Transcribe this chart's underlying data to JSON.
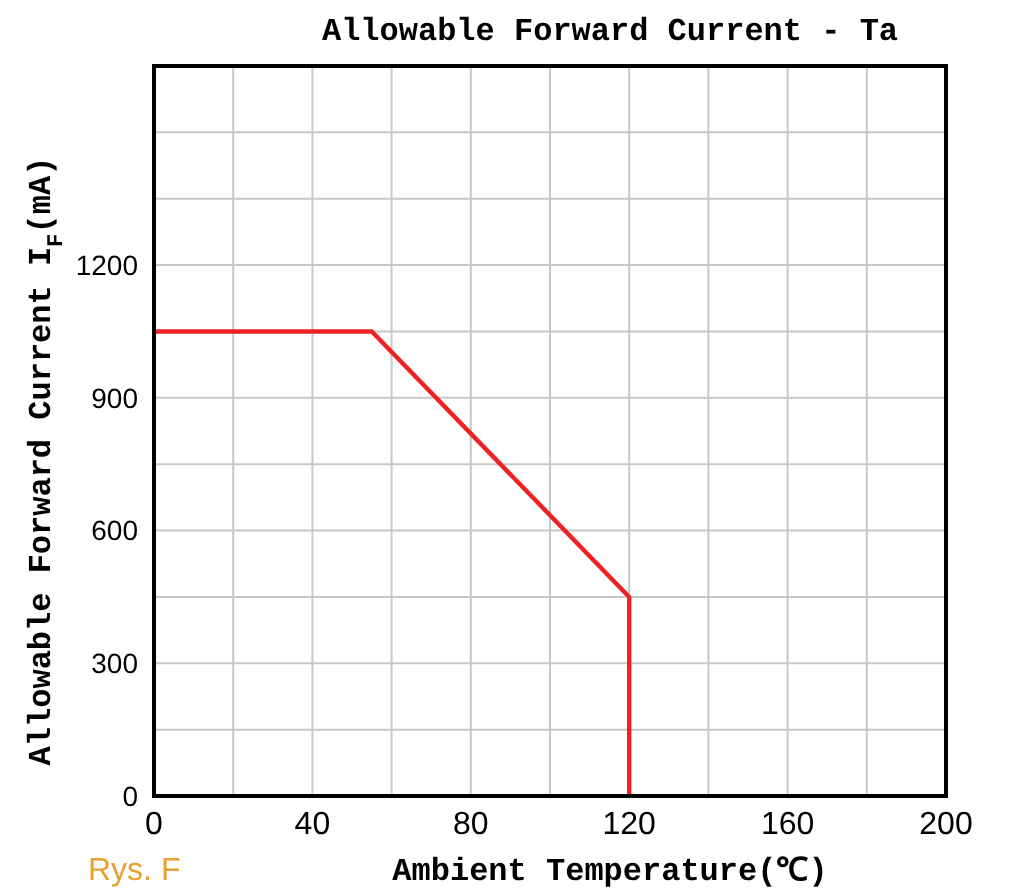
{
  "chart_data": {
    "type": "line",
    "title": "Allowable Forward Current - Ta",
    "xlabel": "Ambient Temperature(℃)",
    "ylabel": "Allowable Forward Current I$_{F}$(mA)",
    "annotations": [
      "Rys. F"
    ],
    "x": [
      0,
      55,
      120,
      120
    ],
    "series": [
      {
        "color": "#ee2222",
        "values": [
          1050,
          1050,
          450,
          0
        ]
      }
    ],
    "xlim": [
      0,
      200
    ],
    "ylim": [
      0,
      1650
    ],
    "xticks": [
      0,
      {
        "value": 20,
        "label": null
      },
      40,
      {
        "value": 60,
        "label": null
      },
      80,
      {
        "value": 100,
        "label": null
      },
      120,
      {
        "value": 140,
        "label": null
      },
      160,
      {
        "value": 180,
        "label": null
      },
      200
    ],
    "yticks": [
      0,
      {
        "value": 150,
        "label": null
      },
      300,
      {
        "value": 450,
        "label": null
      },
      600,
      {
        "value": 750,
        "label": null
      },
      900,
      {
        "value": 1050,
        "label": null
      },
      1200,
      {
        "value": 1350,
        "label": null
      },
      {
        "value": 1500,
        "label": null
      }
    ],
    "grid": true,
    "marker": "none",
    "line_style": "solid"
  }
}
